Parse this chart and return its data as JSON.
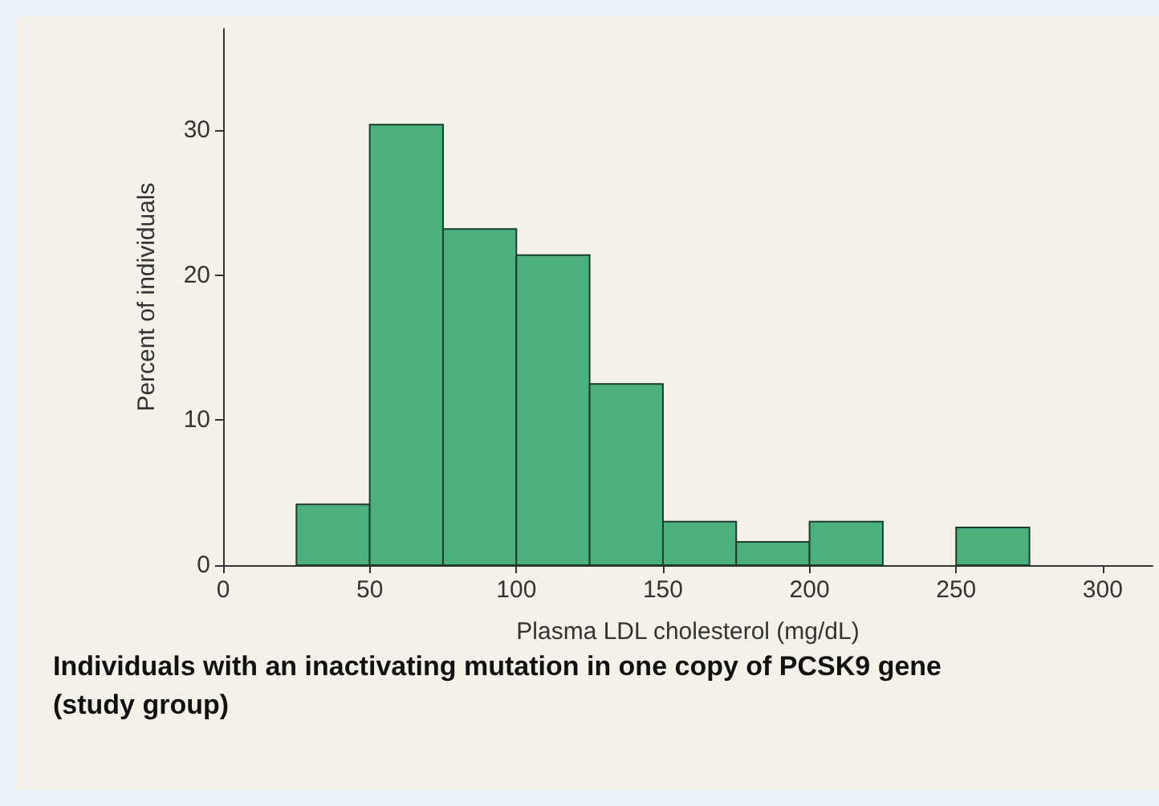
{
  "chart_data": {
    "type": "histogram",
    "title": "Individuals with an inactivating mutation in one copy of PCSK9 gene (study group)",
    "xlabel": "Plasma LDL cholesterol (mg/dL)",
    "ylabel": "Percent of individuals",
    "bins": [
      25,
      50,
      75,
      100,
      125,
      150,
      175,
      200,
      225,
      250,
      275
    ],
    "values": [
      4.2,
      30.4,
      23.2,
      21.4,
      12.5,
      3.0,
      1.6,
      3.0,
      0,
      2.6
    ],
    "color": "#4caf7e",
    "xlim": [
      0,
      317
    ],
    "xticks": [
      0,
      50,
      100,
      150,
      200,
      250,
      300
    ],
    "ylim": [
      0,
      37
    ],
    "yticks": [
      0,
      10,
      20,
      30
    ],
    "grid": false
  }
}
